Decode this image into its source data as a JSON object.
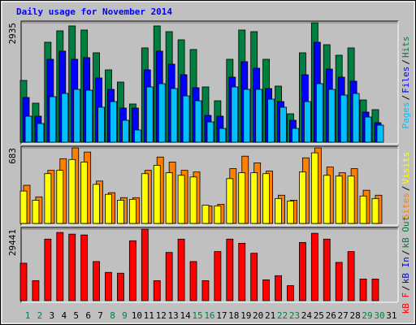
{
  "chart_data": [
    {
      "type": "bar",
      "title": "Daily usage for November 2014",
      "categories": [
        "1",
        "2",
        "3",
        "4",
        "5",
        "6",
        "7",
        "8",
        "9",
        "10",
        "11",
        "12",
        "13",
        "14",
        "15",
        "16",
        "17",
        "18",
        "19",
        "20",
        "21",
        "22",
        "23",
        "24",
        "25",
        "26",
        "27",
        "28",
        "29",
        "30",
        "31"
      ],
      "category_colors": [
        "#008040",
        "#008040",
        "#000000",
        "#000000",
        "#000000",
        "#000000",
        "#000000",
        "#008040",
        "#008040",
        "#000000",
        "#000000",
        "#000000",
        "#000000",
        "#000000",
        "#008040",
        "#008040",
        "#000000",
        "#000000",
        "#000000",
        "#000000",
        "#000000",
        "#008040",
        "#008040",
        "#000000",
        "#000000",
        "#000000",
        "#000000",
        "#000000",
        "#008040",
        "#008040",
        "#000000"
      ],
      "ylim": [
        0,
        2935
      ],
      "yticks": [
        2935
      ],
      "legend_separator": "/",
      "series": [
        {
          "name": "Hits",
          "color": "#008040",
          "values": [
            1518,
            959,
            2456,
            2736,
            2856,
            2756,
            2197,
            1777,
            1478,
            939,
            2317,
            2856,
            2716,
            2516,
            2277,
            1358,
            1018,
            2037,
            2756,
            2716,
            2037,
            1378,
            699,
            2197,
            2935,
            2396,
            2137,
            2317,
            1038,
            799,
            null
          ]
        },
        {
          "name": "Files",
          "color": "#0000ff",
          "values": [
            1098,
            639,
            2037,
            2237,
            2037,
            2077,
            1578,
            1298,
            839,
            839,
            1777,
            2237,
            1917,
            1657,
            1338,
            659,
            639,
            1598,
            1977,
            1817,
            1318,
            998,
            539,
            1657,
            2456,
            1797,
            1598,
            1498,
            739,
            479,
            null
          ]
        },
        {
          "name": "Pages",
          "color": "#00c0ff",
          "values": [
            639,
            459,
            1118,
            1198,
            1298,
            1278,
            859,
            998,
            539,
            300,
            1358,
            1438,
            1318,
            1138,
            1018,
            499,
            339,
            1358,
            1298,
            1298,
            1058,
            859,
            339,
            998,
            1438,
            1298,
            1158,
            1198,
            619,
            419,
            null
          ]
        }
      ]
    },
    {
      "type": "bar",
      "ylim": [
        0,
        683
      ],
      "yticks": [
        683
      ],
      "series": [
        {
          "name": "Visits",
          "color": "#ffff00",
          "values": [
            293,
            210,
            450,
            480,
            578,
            555,
            353,
            263,
            210,
            218,
            450,
            525,
            458,
            435,
            420,
            165,
            158,
            405,
            458,
            458,
            450,
            225,
            203,
            465,
            638,
            435,
            428,
            428,
            248,
            225,
            null
          ]
        },
        {
          "name": "Sites",
          "color": "#ff8000",
          "values": [
            345,
            240,
            480,
            585,
            683,
            645,
            383,
            278,
            233,
            233,
            480,
            600,
            555,
            480,
            465,
            158,
            173,
            495,
            608,
            548,
            473,
            255,
            210,
            593,
            683,
            510,
            458,
            495,
            300,
            255,
            null
          ]
        }
      ]
    },
    {
      "type": "bar",
      "ylim": [
        0,
        29441
      ],
      "yticks": [
        29441
      ],
      "legend_extra": [
        {
          "name": "kB In",
          "color": "#0000ff"
        },
        {
          "name": "kB Out",
          "color": "#008040"
        }
      ],
      "series": [
        {
          "name": "kB F",
          "color": "#ff0000",
          "values": [
            15403,
            8215,
            25330,
            28068,
            27384,
            27042,
            16088,
            11638,
            11296,
            24646,
            29441,
            8215,
            19853,
            25330,
            16088,
            8215,
            20196,
            25330,
            23619,
            19511,
            8558,
            10269,
            6161,
            23961,
            27726,
            25330,
            15746,
            20196,
            8900,
            8900,
            null
          ]
        }
      ]
    }
  ]
}
